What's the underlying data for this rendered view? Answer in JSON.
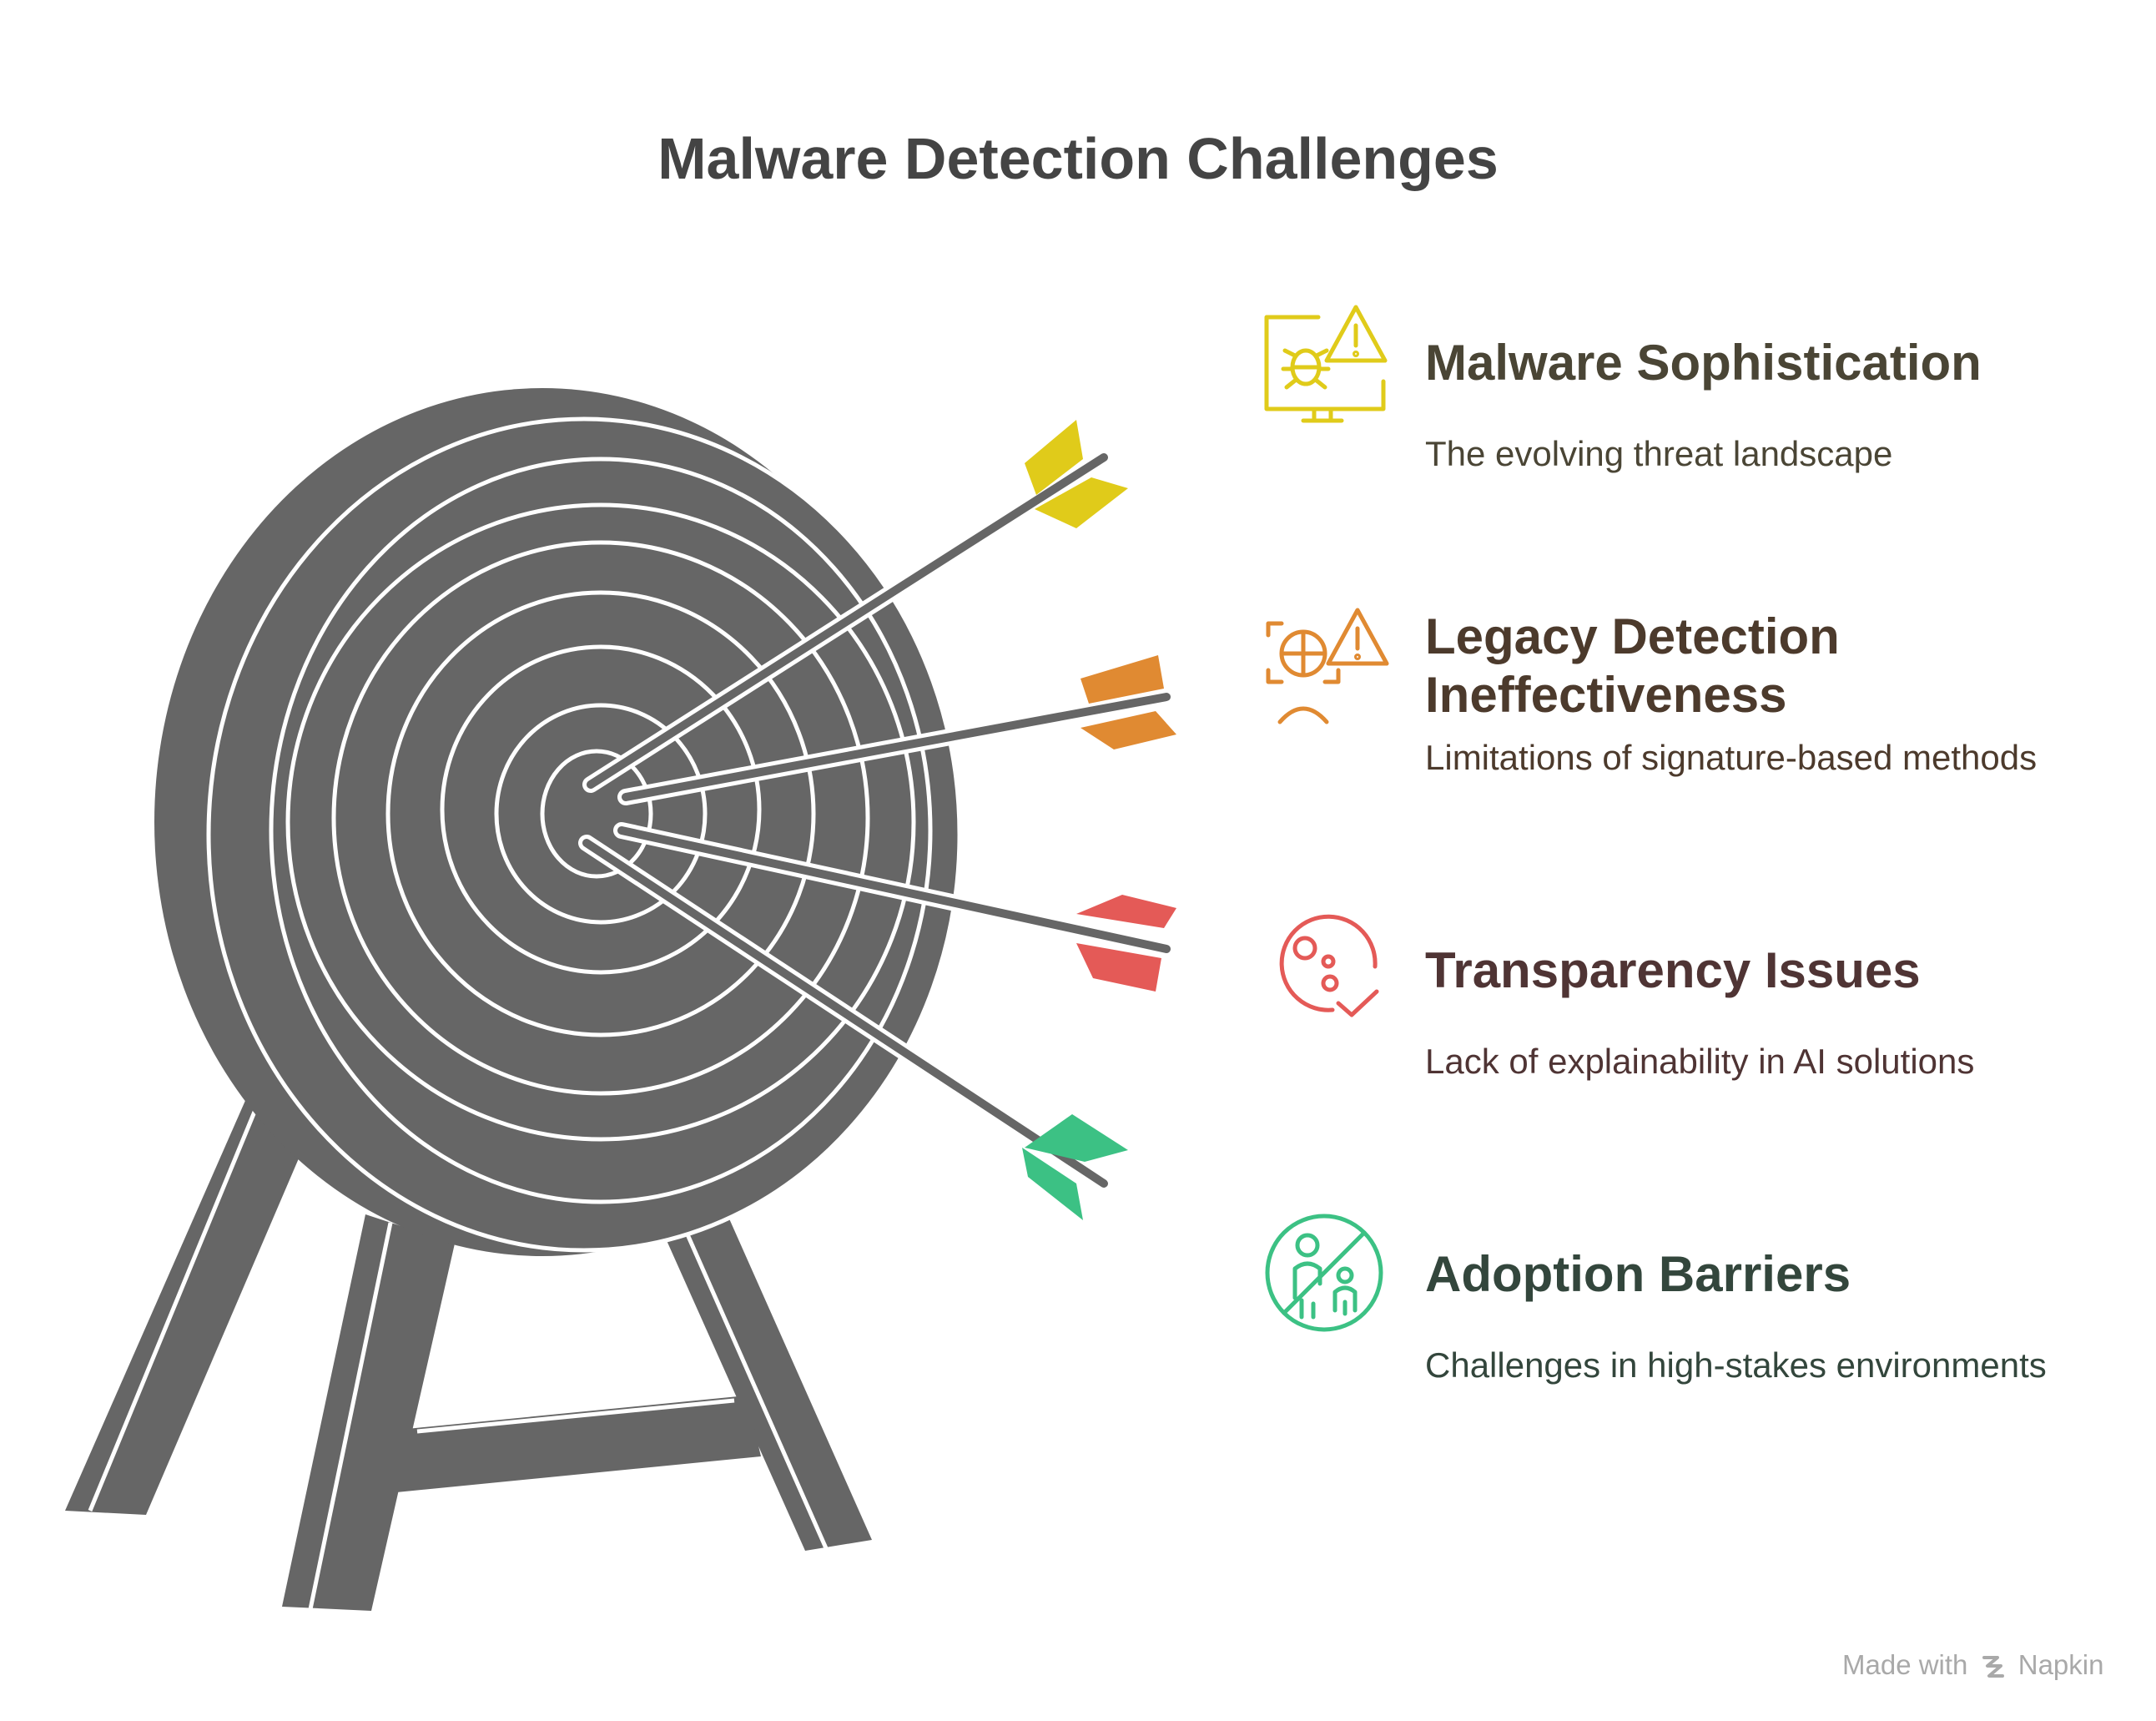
{
  "title": "Malware Detection Challenges",
  "colors": {
    "target": "#666666",
    "yellow": "#e0cb1a",
    "orange": "#e08a32",
    "red": "#e45a57",
    "green": "#3cc184"
  },
  "items": [
    {
      "title": "Malware Sophistication",
      "description": "The evolving threat landscape",
      "icon": "bug-monitor-warning-icon",
      "color": "#e0cb1a",
      "text_color": "#4a4535"
    },
    {
      "title": "Legacy Detection\nIneffectiveness",
      "description": "Limitations of signature-based methods",
      "icon": "scan-user-warning-icon",
      "color": "#e08a32",
      "text_color": "#4c3a2c"
    },
    {
      "title": "Transparency Issues",
      "description": "Lack of explainability in AI solutions",
      "icon": "circle-dots-check-icon",
      "color": "#e45a57",
      "text_color": "#4f3434"
    },
    {
      "title": "Adoption Barriers",
      "description": "Challenges in high-stakes environments",
      "icon": "prohibited-people-icon",
      "color": "#3cc184",
      "text_color": "#33463c"
    }
  ],
  "footer": {
    "prefix": "Made with",
    "brand": "Napkin"
  }
}
